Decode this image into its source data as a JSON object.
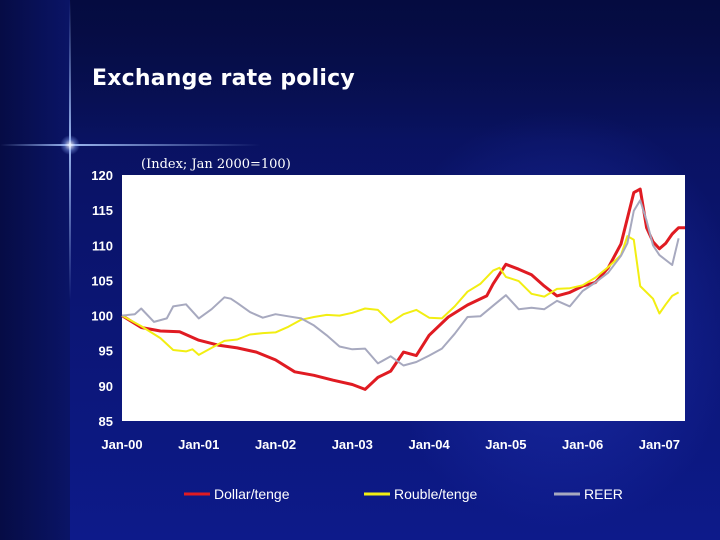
{
  "slide": {
    "title": "Exchange rate policy"
  },
  "chart_data": {
    "type": "line",
    "subtitle": "(Index; Jan 2000=100)",
    "ylim": [
      85,
      120
    ],
    "y_ticks": [
      85,
      90,
      95,
      100,
      105,
      110,
      115,
      120
    ],
    "x_ticks": [
      "Jan-00",
      "Jan-01",
      "Jan-02",
      "Jan-03",
      "Jan-04",
      "Jan-05",
      "Jan-06",
      "Jan-07"
    ],
    "x_range_months": [
      0,
      88
    ],
    "grid": false,
    "legend": "bottom",
    "series": [
      {
        "name": "Dollar/tenge",
        "color": "#e01b22",
        "points": [
          [
            0,
            100
          ],
          [
            3,
            98.3
          ],
          [
            6,
            97.8
          ],
          [
            9,
            97.7
          ],
          [
            12,
            96.5
          ],
          [
            15,
            95.8
          ],
          [
            18,
            95.4
          ],
          [
            21,
            94.8
          ],
          [
            24,
            93.7
          ],
          [
            27,
            92.0
          ],
          [
            30,
            91.5
          ],
          [
            33,
            90.8
          ],
          [
            36,
            90.2
          ],
          [
            38,
            89.5
          ],
          [
            40,
            91.2
          ],
          [
            42,
            92.1
          ],
          [
            44,
            94.8
          ],
          [
            46,
            94.3
          ],
          [
            48,
            97.2
          ],
          [
            51,
            99.8
          ],
          [
            54,
            101.5
          ],
          [
            57,
            102.8
          ],
          [
            58,
            104.5
          ],
          [
            60,
            107.3
          ],
          [
            62,
            106.6
          ],
          [
            64,
            105.8
          ],
          [
            66,
            104.2
          ],
          [
            68,
            102.8
          ],
          [
            70,
            103.3
          ],
          [
            72,
            104.2
          ],
          [
            74,
            104.7
          ],
          [
            76,
            106.8
          ],
          [
            78,
            110.2
          ],
          [
            80,
            117.5
          ],
          [
            81,
            118.0
          ],
          [
            82,
            112.5
          ],
          [
            83,
            110.5
          ],
          [
            84,
            109.5
          ],
          [
            85,
            110.3
          ],
          [
            86,
            111.6
          ],
          [
            87,
            112.5
          ],
          [
            88,
            112.5
          ]
        ]
      },
      {
        "name": "Rouble/tenge",
        "color": "#f2ee12",
        "points": [
          [
            0,
            100
          ],
          [
            3,
            98.5
          ],
          [
            6,
            96.8
          ],
          [
            8,
            95.1
          ],
          [
            10,
            94.9
          ],
          [
            11,
            95.2
          ],
          [
            12,
            94.4
          ],
          [
            14,
            95.4
          ],
          [
            16,
            96.4
          ],
          [
            18,
            96.6
          ],
          [
            20,
            97.3
          ],
          [
            22,
            97.5
          ],
          [
            24,
            97.6
          ],
          [
            26,
            98.4
          ],
          [
            28,
            99.4
          ],
          [
            30,
            99.8
          ],
          [
            32,
            100.1
          ],
          [
            34,
            100.0
          ],
          [
            36,
            100.4
          ],
          [
            38,
            101.0
          ],
          [
            40,
            100.8
          ],
          [
            42,
            99.0
          ],
          [
            44,
            100.2
          ],
          [
            46,
            100.8
          ],
          [
            48,
            99.7
          ],
          [
            50,
            99.6
          ],
          [
            52,
            101.3
          ],
          [
            54,
            103.4
          ],
          [
            56,
            104.5
          ],
          [
            58,
            106.4
          ],
          [
            59,
            106.8
          ],
          [
            60,
            105.5
          ],
          [
            62,
            104.9
          ],
          [
            64,
            103.1
          ],
          [
            66,
            102.7
          ],
          [
            68,
            103.8
          ],
          [
            70,
            103.9
          ],
          [
            72,
            104.3
          ],
          [
            74,
            105.4
          ],
          [
            76,
            106.9
          ],
          [
            78,
            108.6
          ],
          [
            79,
            111.3
          ],
          [
            80,
            110.8
          ],
          [
            81,
            104.2
          ],
          [
            83,
            102.4
          ],
          [
            84,
            100.3
          ],
          [
            85,
            101.6
          ],
          [
            86,
            102.8
          ],
          [
            87,
            103.3
          ]
        ]
      },
      {
        "name": "REER",
        "color": "#a7a9bf",
        "points": [
          [
            0,
            100
          ],
          [
            2,
            100.2
          ],
          [
            3,
            101.0
          ],
          [
            5,
            99.1
          ],
          [
            7,
            99.6
          ],
          [
            8,
            101.3
          ],
          [
            10,
            101.6
          ],
          [
            12,
            99.6
          ],
          [
            14,
            100.9
          ],
          [
            16,
            102.6
          ],
          [
            17,
            102.4
          ],
          [
            18,
            101.8
          ],
          [
            20,
            100.5
          ],
          [
            22,
            99.7
          ],
          [
            24,
            100.2
          ],
          [
            26,
            99.9
          ],
          [
            28,
            99.6
          ],
          [
            30,
            98.6
          ],
          [
            32,
            97.2
          ],
          [
            34,
            95.6
          ],
          [
            36,
            95.2
          ],
          [
            38,
            95.3
          ],
          [
            40,
            93.2
          ],
          [
            42,
            94.2
          ],
          [
            44,
            92.9
          ],
          [
            46,
            93.4
          ],
          [
            48,
            94.3
          ],
          [
            50,
            95.3
          ],
          [
            52,
            97.4
          ],
          [
            54,
            99.8
          ],
          [
            56,
            99.9
          ],
          [
            58,
            101.4
          ],
          [
            60,
            102.9
          ],
          [
            62,
            100.9
          ],
          [
            64,
            101.1
          ],
          [
            66,
            100.9
          ],
          [
            68,
            102.1
          ],
          [
            70,
            101.3
          ],
          [
            72,
            103.5
          ],
          [
            74,
            104.7
          ],
          [
            76,
            106.1
          ],
          [
            78,
            108.5
          ],
          [
            79,
            110.3
          ],
          [
            80,
            114.9
          ],
          [
            81,
            116.4
          ],
          [
            82,
            113.5
          ],
          [
            83,
            110.0
          ],
          [
            84,
            108.6
          ],
          [
            86,
            107.2
          ],
          [
            87,
            111.0
          ]
        ]
      }
    ]
  }
}
